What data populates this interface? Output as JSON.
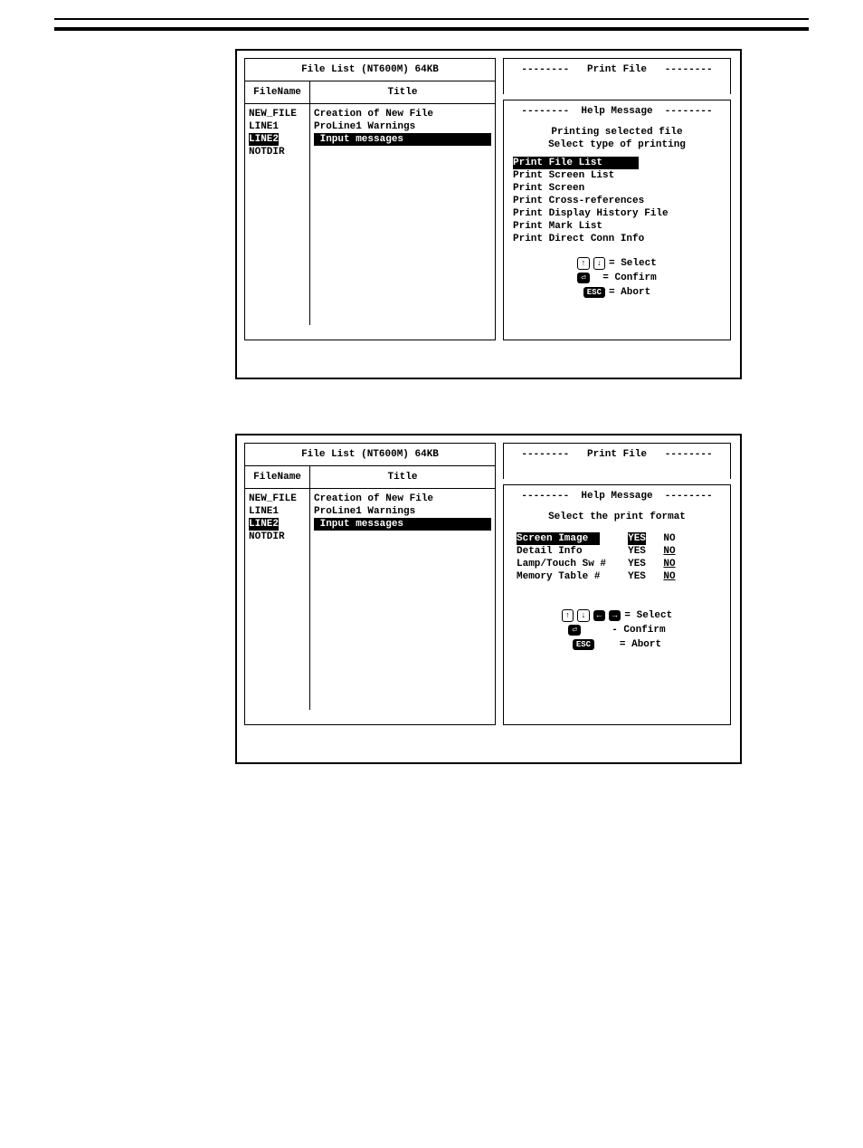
{
  "shared": {
    "fileListTitle": "File List    (NT600M)    64KB",
    "colFileName": "FileName",
    "colTitle": "Title",
    "files": [
      {
        "name": "NEW_FILE",
        "title": "Creation of New File",
        "selected": false
      },
      {
        "name": "LINE1",
        "title": "ProLine1 Warnings",
        "selected": false
      },
      {
        "name": "LINE2",
        "title": "Input messages",
        "selected": true
      },
      {
        "name": "NOTDIR",
        "title": "",
        "selected": false
      }
    ],
    "printFileLabel": "Print File",
    "helpMessageLabel": "Help Message",
    "keySelect": "= Select",
    "keyConfirm": "= Confirm",
    "keyConfirmDash": "- Confirm",
    "keyAbort": "= Abort",
    "escKey": "ESC"
  },
  "screen1": {
    "helpLine1": "Printing selected file",
    "helpLine2": "Select type of printing",
    "menu": [
      {
        "label": "Print File List",
        "selected": true
      },
      {
        "label": "Print Screen List",
        "selected": false
      },
      {
        "label": "Print Screen",
        "selected": false
      },
      {
        "label": "Print Cross-references",
        "selected": false
      },
      {
        "label": "Print Display History File",
        "selected": false
      },
      {
        "label": "Print Mark List",
        "selected": false
      },
      {
        "label": "Print Direct Conn Info",
        "selected": false
      }
    ]
  },
  "screen2": {
    "helpLine": "Select the print format",
    "options": [
      {
        "label": "Screen Image",
        "labelSelected": true,
        "yesSel": true,
        "noSel": false
      },
      {
        "label": "Detail Info",
        "labelSelected": false,
        "yesSel": false,
        "noSel": true
      },
      {
        "label": "Lamp/Touch Sw #",
        "labelSelected": false,
        "yesSel": false,
        "noSel": true
      },
      {
        "label": "Memory Table #",
        "labelSelected": false,
        "yesSel": false,
        "noSel": true
      }
    ],
    "yes": "YES",
    "no": "NO"
  }
}
